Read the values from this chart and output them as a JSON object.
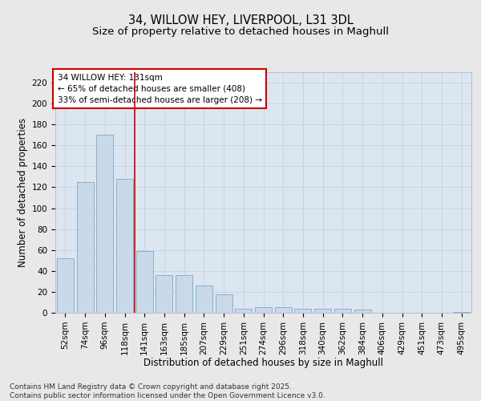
{
  "title1": "34, WILLOW HEY, LIVERPOOL, L31 3DL",
  "title2": "Size of property relative to detached houses in Maghull",
  "xlabel": "Distribution of detached houses by size in Maghull",
  "ylabel": "Number of detached properties",
  "categories": [
    "52sqm",
    "74sqm",
    "96sqm",
    "118sqm",
    "141sqm",
    "163sqm",
    "185sqm",
    "207sqm",
    "229sqm",
    "251sqm",
    "274sqm",
    "296sqm",
    "318sqm",
    "340sqm",
    "362sqm",
    "384sqm",
    "406sqm",
    "429sqm",
    "451sqm",
    "473sqm",
    "495sqm"
  ],
  "values": [
    52,
    125,
    170,
    128,
    59,
    36,
    36,
    26,
    18,
    4,
    5,
    5,
    4,
    4,
    4,
    3,
    0,
    0,
    0,
    0,
    1
  ],
  "bar_color": "#c9d9ea",
  "bar_edge_color": "#7aaac8",
  "grid_color": "#c8d0de",
  "background_color": "#dce6f0",
  "fig_background_color": "#e8e8e8",
  "annotation_box_text": "34 WILLOW HEY: 131sqm\n← 65% of detached houses are smaller (408)\n33% of semi-detached houses are larger (208) →",
  "annotation_box_facecolor": "#ffffff",
  "annotation_box_edgecolor": "#cc0000",
  "vline_color": "#cc0000",
  "vline_x_index": 3,
  "ylim": [
    0,
    230
  ],
  "yticks": [
    0,
    20,
    40,
    60,
    80,
    100,
    120,
    140,
    160,
    180,
    200,
    220
  ],
  "footnote": "Contains HM Land Registry data © Crown copyright and database right 2025.\nContains public sector information licensed under the Open Government Licence v3.0.",
  "title1_fontsize": 10.5,
  "title2_fontsize": 9.5,
  "xlabel_fontsize": 8.5,
  "ylabel_fontsize": 8.5,
  "tick_fontsize": 7.5,
  "annot_fontsize": 7.5,
  "footnote_fontsize": 6.5
}
